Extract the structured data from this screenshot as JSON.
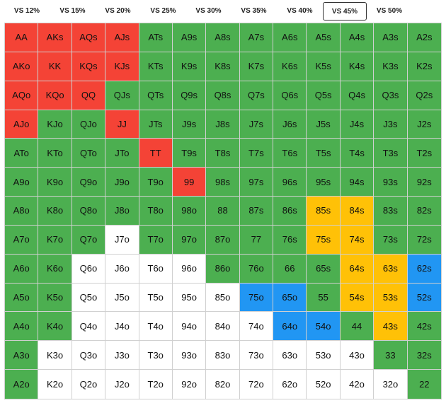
{
  "tabs": [
    {
      "label": "VS 12%",
      "active": false
    },
    {
      "label": "VS 15%",
      "active": false
    },
    {
      "label": "VS 20%",
      "active": false
    },
    {
      "label": "VS 25%",
      "active": false
    },
    {
      "label": "VS 30%",
      "active": false
    },
    {
      "label": "VS 35%",
      "active": false
    },
    {
      "label": "VS 40%",
      "active": false
    },
    {
      "label": "VS 45%",
      "active": true
    },
    {
      "label": "VS 50%",
      "active": false
    }
  ],
  "colors": {
    "R": "#f44336",
    "G": "#4caf50",
    "Y": "#ffc107",
    "B": "#2196f3",
    "W": "#ffffff"
  },
  "grid": {
    "rows": [
      [
        "AA",
        "AKs",
        "AQs",
        "AJs",
        "ATs",
        "A9s",
        "A8s",
        "A7s",
        "A6s",
        "A5s",
        "A4s",
        "A3s",
        "A2s"
      ],
      [
        "AKo",
        "KK",
        "KQs",
        "KJs",
        "KTs",
        "K9s",
        "K8s",
        "K7s",
        "K6s",
        "K5s",
        "K4s",
        "K3s",
        "K2s"
      ],
      [
        "AQo",
        "KQo",
        "QQ",
        "QJs",
        "QTs",
        "Q9s",
        "Q8s",
        "Q7s",
        "Q6s",
        "Q5s",
        "Q4s",
        "Q3s",
        "Q2s"
      ],
      [
        "AJo",
        "KJo",
        "QJo",
        "JJ",
        "JTs",
        "J9s",
        "J8s",
        "J7s",
        "J6s",
        "J5s",
        "J4s",
        "J3s",
        "J2s"
      ],
      [
        "ATo",
        "KTo",
        "QTo",
        "JTo",
        "TT",
        "T9s",
        "T8s",
        "T7s",
        "T6s",
        "T5s",
        "T4s",
        "T3s",
        "T2s"
      ],
      [
        "A9o",
        "K9o",
        "Q9o",
        "J9o",
        "T9o",
        "99",
        "98s",
        "97s",
        "96s",
        "95s",
        "94s",
        "93s",
        "92s"
      ],
      [
        "A8o",
        "K8o",
        "Q8o",
        "J8o",
        "T8o",
        "98o",
        "88",
        "87s",
        "86s",
        "85s",
        "84s",
        "83s",
        "82s"
      ],
      [
        "A7o",
        "K7o",
        "Q7o",
        "J7o",
        "T7o",
        "97o",
        "87o",
        "77",
        "76s",
        "75s",
        "74s",
        "73s",
        "72s"
      ],
      [
        "A6o",
        "K6o",
        "Q6o",
        "J6o",
        "T6o",
        "96o",
        "86o",
        "76o",
        "66",
        "65s",
        "64s",
        "63s",
        "62s"
      ],
      [
        "A5o",
        "K5o",
        "Q5o",
        "J5o",
        "T5o",
        "95o",
        "85o",
        "75o",
        "65o",
        "55",
        "54s",
        "53s",
        "52s"
      ],
      [
        "A4o",
        "K4o",
        "Q4o",
        "J4o",
        "T4o",
        "94o",
        "84o",
        "74o",
        "64o",
        "54o",
        "44",
        "43s",
        "42s"
      ],
      [
        "A3o",
        "K3o",
        "Q3o",
        "J3o",
        "T3o",
        "93o",
        "83o",
        "73o",
        "63o",
        "53o",
        "43o",
        "33",
        "32s"
      ],
      [
        "A2o",
        "K2o",
        "Q2o",
        "J2o",
        "T2o",
        "92o",
        "82o",
        "72o",
        "62o",
        "52o",
        "42o",
        "32o",
        "22"
      ]
    ],
    "color_rows": [
      "RRRRGGGGGGGGG",
      "RRRRGGGGGGGGG",
      "RRRGGGGGGGGGG",
      "RGGRGGGGGGGGG",
      "GGGGRGGGGGGGG",
      "GGGGGRGGGGGGG",
      "GGGGGGGGGYYGG",
      "GGGWGGGGGYYGG",
      "GGWWWWGGGGYYB",
      "GGWWWWWBBGYYB",
      "GGWWWWWWBBGYG",
      "GWWWWWWWWWWGG",
      "GWWWWWWWWWWWG"
    ]
  }
}
